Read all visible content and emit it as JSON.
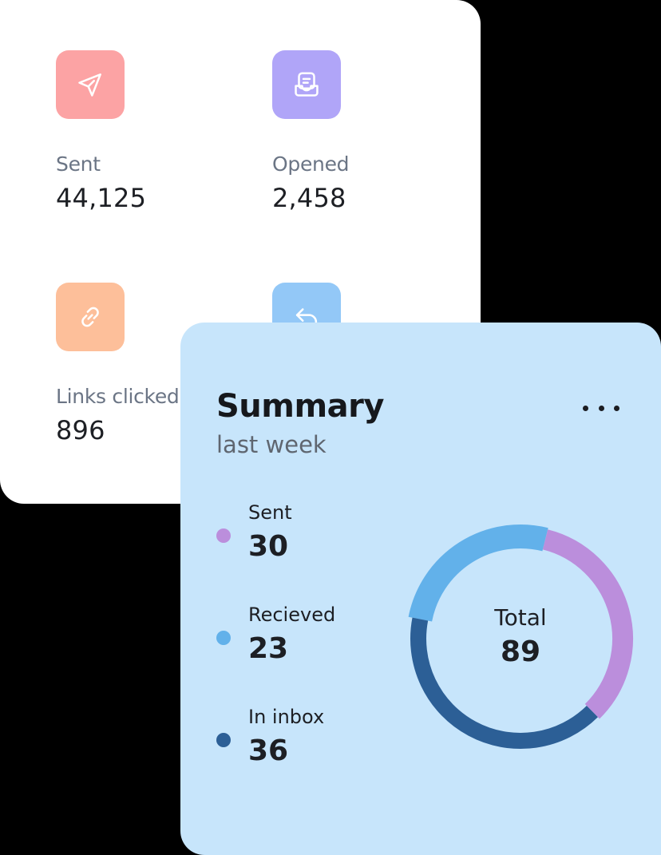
{
  "stats": [
    {
      "label": "Sent",
      "value": "44,125",
      "icon": "paper-plane-icon",
      "color": "#fca3a4"
    },
    {
      "label": "Opened",
      "value": "2,458",
      "icon": "inbox-tray-icon",
      "color": "#b0a5f8"
    },
    {
      "label": "Links clicked",
      "value": "896",
      "icon": "link-icon",
      "color": "#fdbf9a"
    },
    {
      "label": "",
      "value": "",
      "icon": "reply-arrow-icon",
      "color": "#93c8f7"
    }
  ],
  "summary": {
    "title": "Summary",
    "subtitle": "last week",
    "total_label": "Total",
    "total_value": "89",
    "legend": [
      {
        "label": "Sent",
        "value": "30",
        "color": "#bb8edc"
      },
      {
        "label": "Recieved",
        "value": "23",
        "color": "#62b1ea"
      },
      {
        "label": "In inbox",
        "value": "36",
        "color": "#2c5f96"
      }
    ]
  },
  "chart_data": {
    "type": "pie",
    "variant": "donut",
    "categories": [
      "Sent",
      "Recieved",
      "In inbox"
    ],
    "values": [
      30,
      23,
      36
    ],
    "colors": [
      "#bb8edc",
      "#62b1ea",
      "#2c5f96"
    ],
    "center_label": "Total",
    "center_value": 89
  }
}
